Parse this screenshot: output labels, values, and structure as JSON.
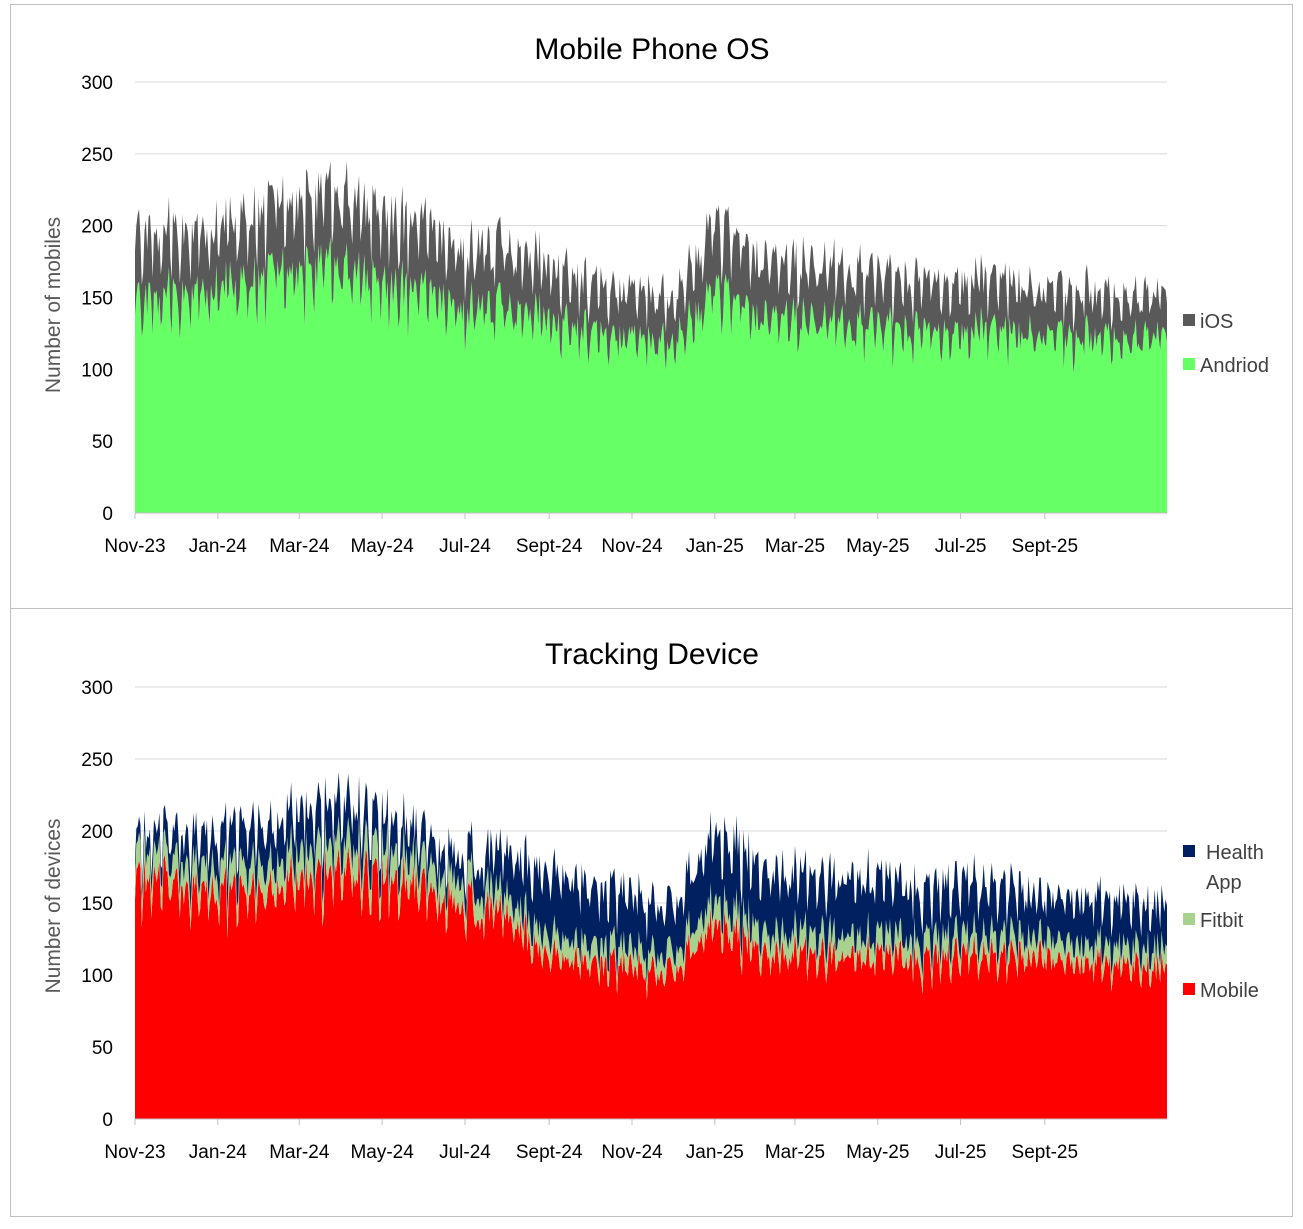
{
  "chart_data": [
    {
      "type": "area",
      "stacked": true,
      "title": "Mobile Phone OS",
      "ylabel": "Number of mobiles",
      "xlabel": "",
      "ylim": [
        0,
        300
      ],
      "yticks": [
        0,
        50,
        100,
        150,
        200,
        250,
        300
      ],
      "xlim": [
        "2023-11-01",
        "2025-11-30"
      ],
      "xticks": [
        "Nov-23",
        "Jan-24",
        "Mar-24",
        "May-24",
        "Jul-24",
        "Sept-24",
        "Nov-24",
        "Jan-25",
        "Mar-25",
        "May-25",
        "Jul-25",
        "Sept-25"
      ],
      "grid": true,
      "legend_position": "right",
      "legend": [
        "iOS",
        "Andriod"
      ],
      "x": [
        "2023-11-01",
        "2023-12-01",
        "2024-01-01",
        "2024-02-01",
        "2024-03-01",
        "2024-04-01",
        "2024-05-01",
        "2024-06-01",
        "2024-07-01",
        "2024-08-01",
        "2024-09-01",
        "2024-10-01",
        "2024-11-01",
        "2024-12-01",
        "2025-01-01",
        "2025-02-01",
        "2025-03-01",
        "2025-04-01",
        "2025-05-01",
        "2025-06-01",
        "2025-07-01",
        "2025-08-01",
        "2025-09-01",
        "2025-10-01",
        "2025-11-30"
      ],
      "series": [
        {
          "name": "Andriod",
          "color": "#66ff66",
          "values": [
            148,
            150,
            155,
            160,
            165,
            172,
            158,
            150,
            140,
            143,
            132,
            126,
            122,
            117,
            152,
            137,
            132,
            130,
            129,
            124,
            128,
            128,
            120,
            122,
            120
          ]
        },
        {
          "name": "iOS",
          "color": "#595959",
          "values": [
            45,
            43,
            41,
            45,
            47,
            50,
            48,
            45,
            40,
            41,
            37,
            34,
            33,
            30,
            45,
            40,
            38,
            37,
            36,
            34,
            35,
            35,
            31,
            31,
            28
          ]
        }
      ]
    },
    {
      "type": "area",
      "stacked": true,
      "title": "Tracking Device",
      "ylabel": "Number of devices",
      "xlabel": "",
      "ylim": [
        0,
        300
      ],
      "yticks": [
        0,
        50,
        100,
        150,
        200,
        250,
        300
      ],
      "xlim": [
        "2023-11-01",
        "2025-11-30"
      ],
      "xticks": [
        "Nov-23",
        "Jan-24",
        "Mar-24",
        "May-24",
        "Jul-24",
        "Sept-24",
        "Nov-24",
        "Jan-25",
        "Mar-25",
        "May-25",
        "Jul-25",
        "Sept-25"
      ],
      "grid": true,
      "legend_position": "right",
      "legend": [
        "Health App",
        "Fitbit",
        "Mobile"
      ],
      "x": [
        "2023-11-01",
        "2023-12-01",
        "2024-01-01",
        "2024-02-01",
        "2024-03-01",
        "2024-04-01",
        "2024-05-01",
        "2024-06-01",
        "2024-07-01",
        "2024-08-01",
        "2024-09-01",
        "2024-10-01",
        "2024-11-01",
        "2024-12-01",
        "2025-01-01",
        "2025-02-01",
        "2025-03-01",
        "2025-04-01",
        "2025-05-01",
        "2025-06-01",
        "2025-07-01",
        "2025-08-01",
        "2025-09-01",
        "2025-10-01",
        "2025-11-30"
      ],
      "series": [
        {
          "name": "Mobile",
          "color": "#ff0000",
          "values": [
            165,
            158,
            155,
            160,
            165,
            175,
            165,
            158,
            148,
            140,
            112,
            108,
            105,
            102,
            135,
            118,
            115,
            113,
            112,
            110,
            113,
            114,
            110,
            108,
            105
          ]
        },
        {
          "name": "Fitbit",
          "color": "#a9d18e",
          "values": [
            18,
            17,
            17,
            18,
            19,
            20,
            19,
            18,
            16,
            14,
            14,
            13,
            13,
            13,
            16,
            15,
            15,
            15,
            14,
            14,
            14,
            14,
            14,
            13,
            13
          ]
        },
        {
          "name": "Health App",
          "color": "#002060",
          "values": [
            10,
            18,
            24,
            27,
            28,
            27,
            22,
            19,
            16,
            30,
            43,
            39,
            37,
            32,
            46,
            44,
            40,
            39,
            39,
            34,
            36,
            35,
            27,
            32,
            30
          ]
        }
      ]
    }
  ]
}
